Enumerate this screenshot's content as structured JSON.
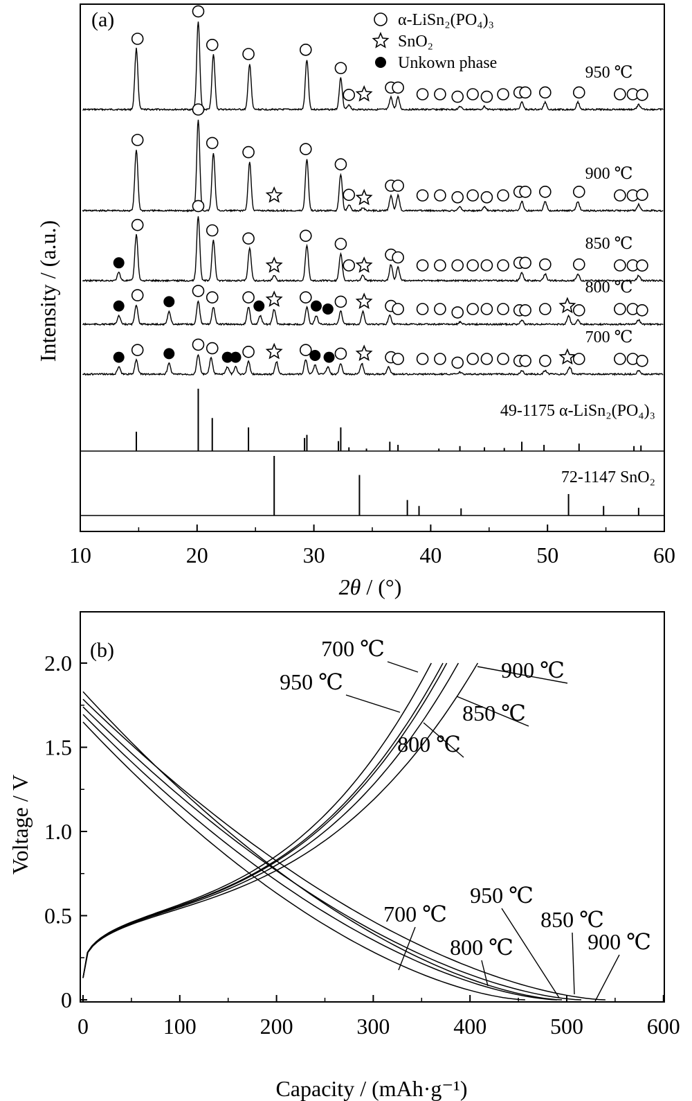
{
  "chart_data": [
    {
      "type": "line",
      "panel_label": "(a)",
      "xlabel_italic": "2θ",
      "xlabel_rest": " / (°)",
      "ylabel": "Intensity / (a.u.)",
      "xlim": [
        10,
        60
      ],
      "x_ticks": [
        "10",
        "20",
        "30",
        "40",
        "50",
        "60"
      ],
      "legend": {
        "placement": "top-right",
        "entries": [
          {
            "marker": "open-circle",
            "label": "α-LiSn₂(PO₄)₃"
          },
          {
            "marker": "star",
            "label": "SnO₂"
          },
          {
            "marker": "filled-circle",
            "label": "Unkown phase"
          }
        ]
      },
      "series": [
        {
          "name": "950 ℃",
          "peaks": [
            [
              14.8,
              1.0
            ],
            [
              20.1,
              1.45
            ],
            [
              21.4,
              0.9
            ],
            [
              24.5,
              0.75
            ],
            [
              29.4,
              0.82
            ],
            [
              32.3,
              0.52
            ],
            [
              33.0,
              0.08
            ],
            [
              36.6,
              0.2
            ],
            [
              37.2,
              0.2
            ],
            [
              42.5,
              0.05
            ],
            [
              44.6,
              0.05
            ],
            [
              47.8,
              0.12
            ],
            [
              49.8,
              0.12
            ],
            [
              52.6,
              0.12
            ],
            [
              57.8,
              0.08
            ]
          ]
        },
        {
          "name": "900 ℃",
          "peaks": [
            [
              14.8,
              1.0
            ],
            [
              20.1,
              1.5
            ],
            [
              21.4,
              0.95
            ],
            [
              24.5,
              0.8
            ],
            [
              29.4,
              0.85
            ],
            [
              32.3,
              0.6
            ],
            [
              33.0,
              0.1
            ],
            [
              34.2,
              0.05
            ],
            [
              36.6,
              0.25
            ],
            [
              37.2,
              0.25
            ],
            [
              42.5,
              0.06
            ],
            [
              44.6,
              0.06
            ],
            [
              47.8,
              0.15
            ],
            [
              49.8,
              0.15
            ],
            [
              52.6,
              0.15
            ],
            [
              57.8,
              0.1
            ]
          ]
        },
        {
          "name": "850 ℃",
          "peaks": [
            [
              13.3,
              0.15
            ],
            [
              14.8,
              0.85
            ],
            [
              20.1,
              1.2
            ],
            [
              21.4,
              0.75
            ],
            [
              24.5,
              0.6
            ],
            [
              26.6,
              0.1
            ],
            [
              29.4,
              0.65
            ],
            [
              32.3,
              0.5
            ],
            [
              34.2,
              0.1
            ],
            [
              36.6,
              0.3
            ],
            [
              37.2,
              0.25
            ],
            [
              47.8,
              0.15
            ],
            [
              49.8,
              0.12
            ],
            [
              52.6,
              0.12
            ],
            [
              57.8,
              0.1
            ]
          ]
        },
        {
          "name": "800 ℃",
          "peaks": [
            [
              13.3,
              0.2
            ],
            [
              14.8,
              0.45
            ],
            [
              17.6,
              0.3
            ],
            [
              20.1,
              0.55
            ],
            [
              21.4,
              0.4
            ],
            [
              24.4,
              0.4
            ],
            [
              25.4,
              0.2
            ],
            [
              26.6,
              0.35
            ],
            [
              29.4,
              0.4
            ],
            [
              30.2,
              0.2
            ],
            [
              32.3,
              0.3
            ],
            [
              34.2,
              0.3
            ],
            [
              36.5,
              0.2
            ],
            [
              42.5,
              0.05
            ],
            [
              47.8,
              0.1
            ],
            [
              51.8,
              0.2
            ],
            [
              52.6,
              0.1
            ],
            [
              57.8,
              0.1
            ]
          ]
        },
        {
          "name": "700 ℃",
          "peaks": [
            [
              13.3,
              0.2
            ],
            [
              14.8,
              0.4
            ],
            [
              17.6,
              0.3
            ],
            [
              20.1,
              0.55
            ],
            [
              21.2,
              0.45
            ],
            [
              22.6,
              0.2
            ],
            [
              23.3,
              0.2
            ],
            [
              24.4,
              0.35
            ],
            [
              26.8,
              0.35
            ],
            [
              29.3,
              0.4
            ],
            [
              30.1,
              0.25
            ],
            [
              31.2,
              0.2
            ],
            [
              32.3,
              0.3
            ],
            [
              34.1,
              0.3
            ],
            [
              36.4,
              0.2
            ],
            [
              42.5,
              0.05
            ],
            [
              47.8,
              0.1
            ],
            [
              49.8,
              0.1
            ],
            [
              51.9,
              0.2
            ],
            [
              57.8,
              0.1
            ]
          ]
        }
      ],
      "references": [
        {
          "name": "49-1175 α-LiSn₂(PO₄)₃",
          "lines": [
            [
              14.8,
              0.31
            ],
            [
              20.1,
              1.0
            ],
            [
              21.3,
              0.53
            ],
            [
              24.4,
              0.38
            ],
            [
              29.2,
              0.21
            ],
            [
              29.4,
              0.26
            ],
            [
              32.1,
              0.16
            ],
            [
              32.3,
              0.38
            ],
            [
              33.0,
              0.06
            ],
            [
              34.5,
              0.04
            ],
            [
              36.5,
              0.15
            ],
            [
              37.2,
              0.1
            ],
            [
              40.7,
              0.04
            ],
            [
              42.5,
              0.08
            ],
            [
              44.6,
              0.06
            ],
            [
              46.3,
              0.05
            ],
            [
              47.8,
              0.15
            ],
            [
              49.7,
              0.1
            ],
            [
              52.7,
              0.12
            ],
            [
              57.4,
              0.08
            ],
            [
              58.0,
              0.09
            ]
          ]
        },
        {
          "name": "72-1147 SnO₂",
          "lines": [
            [
              26.6,
              1.0
            ],
            [
              33.9,
              0.68
            ],
            [
              38.0,
              0.26
            ],
            [
              39.0,
              0.16
            ],
            [
              42.6,
              0.12
            ],
            [
              51.8,
              0.36
            ],
            [
              54.8,
              0.16
            ],
            [
              57.8,
              0.13
            ]
          ]
        }
      ],
      "phase_markers": [
        {
          "series": "950 ℃",
          "open_circle": [
            14.9,
            20.1,
            21.3,
            24.4,
            29.3,
            32.3,
            33.0,
            36.6,
            37.2,
            39.3,
            40.8,
            42.3,
            43.6,
            44.8,
            46.2,
            47.6,
            48.1,
            49.8,
            52.7,
            56.2,
            57.3,
            58.1
          ],
          "star": [
            34.3
          ],
          "filled_circle": []
        },
        {
          "series": "900 ℃",
          "open_circle": [
            14.9,
            20.1,
            21.3,
            24.4,
            29.3,
            32.3,
            33.0,
            36.6,
            37.2,
            39.3,
            40.8,
            42.3,
            43.6,
            44.8,
            46.2,
            47.6,
            48.1,
            49.8,
            52.7,
            56.2,
            57.3,
            58.1
          ],
          "star": [
            26.6,
            34.3
          ],
          "filled_circle": []
        },
        {
          "series": "850 ℃",
          "open_circle": [
            14.9,
            20.1,
            21.3,
            24.4,
            29.3,
            32.3,
            33.0,
            36.6,
            37.2,
            39.3,
            40.8,
            42.3,
            43.6,
            44.8,
            46.2,
            47.6,
            48.1,
            49.8,
            52.7,
            56.2,
            57.3,
            58.1
          ],
          "star": [
            26.6,
            34.3
          ],
          "filled_circle": [
            13.3
          ]
        },
        {
          "series": "800 ℃",
          "open_circle": [
            14.9,
            20.1,
            21.3,
            24.4,
            29.3,
            32.3,
            36.6,
            37.2,
            39.3,
            40.8,
            42.3,
            43.6,
            44.8,
            46.2,
            47.6,
            48.1,
            49.8,
            52.7,
            56.2,
            57.3,
            58.1
          ],
          "star": [
            26.6,
            34.3,
            51.7
          ],
          "filled_circle": [
            13.3,
            17.6,
            25.3,
            30.2,
            31.2
          ]
        },
        {
          "series": "700 ℃",
          "open_circle": [
            14.9,
            20.1,
            21.3,
            24.4,
            29.3,
            32.3,
            36.6,
            37.2,
            39.3,
            40.8,
            42.3,
            43.6,
            44.8,
            46.2,
            47.6,
            48.1,
            49.8,
            52.7,
            56.2,
            57.3,
            58.1
          ],
          "star": [
            26.6,
            34.3,
            51.7
          ],
          "filled_circle": [
            13.3,
            17.6,
            22.6,
            23.3,
            30.1,
            31.3
          ]
        }
      ]
    },
    {
      "type": "line",
      "panel_label": "(b)",
      "xlabel": "Capacity / (mAh·g⁻¹)",
      "ylabel": "Voltage / V",
      "xlim": [
        0,
        600
      ],
      "ylim": [
        0,
        2.2
      ],
      "x_ticks": [
        "0",
        "100",
        "200",
        "300",
        "400",
        "500",
        "600"
      ],
      "y_ticks": [
        "0",
        "0.5",
        "1.0",
        "1.5",
        "2.0"
      ],
      "series": [
        {
          "name": "700 ℃",
          "discharge_end": 457,
          "charge_end": 360,
          "charge_label": "700 ℃",
          "discharge_label": "700 ℃"
        },
        {
          "name": "800 ℃",
          "discharge_end": 490,
          "charge_end": 372,
          "charge_label": "800 ℃",
          "discharge_label": "800 ℃"
        },
        {
          "name": "850 ℃",
          "discharge_end": 515,
          "charge_end": 388,
          "charge_label": "850 ℃",
          "discharge_label": "850 ℃"
        },
        {
          "name": "900 ℃",
          "discharge_end": 540,
          "charge_end": 408,
          "charge_label": "900 ℃",
          "discharge_label": "900 ℃"
        },
        {
          "name": "950 ℃",
          "discharge_end": 495,
          "charge_end": 376,
          "charge_label": "950 ℃",
          "discharge_label": "950 ℃"
        }
      ]
    }
  ]
}
